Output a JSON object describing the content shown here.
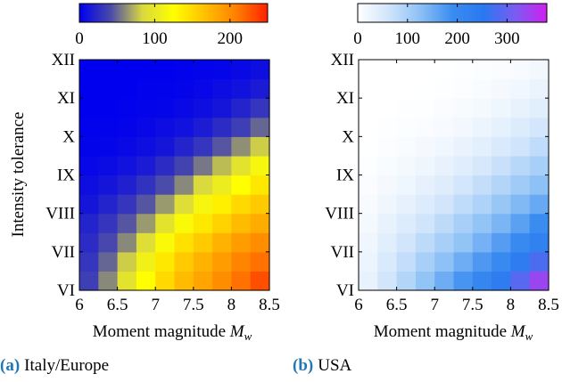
{
  "chart_data": [
    {
      "type": "heatmap",
      "caption_letter": "(a)",
      "caption_text": "Italy/Europe",
      "xlabel": "Moment magnitude M_w",
      "xlabel_main": "Moment magnitude ",
      "xlabel_sym": "M",
      "xlabel_sub": "w",
      "ylabel": "Intensity tolerance",
      "x_ticks": [
        "6",
        "6.5",
        "7",
        "7.5",
        "8",
        "8.5"
      ],
      "xlim": [
        6,
        8.5
      ],
      "y_ticks": [
        "VI",
        "VII",
        "VIII",
        "IX",
        "X",
        "XI",
        "XII"
      ],
      "colorbar": {
        "ticks": [
          "0",
          "100",
          "200"
        ],
        "tick_values": [
          0,
          100,
          200
        ],
        "range": [
          0,
          250
        ],
        "colormap": [
          "#0000ee",
          "#4a4aaa",
          "#d8d840",
          "#ffff00",
          "#ffc000",
          "#ff8000",
          "#ff2000"
        ]
      },
      "grid": {
        "rows_bottom_to_top": 12,
        "cols_left_to_right": 10,
        "values": [
          [
            35,
            60,
            95,
            125,
            150,
            170,
            185,
            200,
            215,
            230
          ],
          [
            30,
            50,
            80,
            110,
            140,
            160,
            175,
            190,
            205,
            215
          ],
          [
            25,
            40,
            60,
            90,
            120,
            145,
            160,
            175,
            190,
            200
          ],
          [
            20,
            30,
            45,
            65,
            95,
            120,
            140,
            155,
            170,
            180
          ],
          [
            12,
            20,
            30,
            45,
            65,
            90,
            115,
            135,
            150,
            160
          ],
          [
            8,
            12,
            18,
            28,
            42,
            60,
            85,
            105,
            125,
            140
          ],
          [
            4,
            6,
            10,
            15,
            25,
            38,
            55,
            75,
            95,
            115
          ],
          [
            2,
            3,
            5,
            8,
            12,
            20,
            30,
            45,
            62,
            80
          ],
          [
            1,
            1,
            2,
            4,
            7,
            10,
            16,
            25,
            35,
            50
          ],
          [
            0,
            0,
            1,
            2,
            3,
            5,
            8,
            12,
            20,
            30
          ],
          [
            0,
            0,
            0,
            1,
            1,
            2,
            4,
            7,
            10,
            15
          ],
          [
            0,
            0,
            0,
            0,
            0,
            1,
            2,
            3,
            5,
            8
          ]
        ]
      }
    },
    {
      "type": "heatmap",
      "caption_letter": "(b)",
      "caption_text": "USA",
      "xlabel": "Moment magnitude M_w",
      "xlabel_main": "Moment magnitude ",
      "xlabel_sym": "M",
      "xlabel_sub": "w",
      "ylabel": "",
      "x_ticks": [
        "6",
        "6.5",
        "7",
        "7.5",
        "8",
        "8.5"
      ],
      "xlim": [
        6,
        8.5
      ],
      "y_ticks": [
        "VI",
        "VII",
        "VIII",
        "IX",
        "X",
        "XI",
        "XII"
      ],
      "colorbar": {
        "ticks": [
          "0",
          "100",
          "200",
          "300"
        ],
        "tick_values": [
          0,
          100,
          200,
          300
        ],
        "range": [
          0,
          380
        ],
        "colormap": [
          "#ffffff",
          "#cfe4fb",
          "#8cc0f5",
          "#3b8cf0",
          "#2a78f0",
          "#7a5cf0",
          "#d020f0"
        ]
      },
      "grid": {
        "rows_bottom_to_top": 12,
        "cols_left_to_right": 10,
        "values": [
          [
            30,
            60,
            90,
            120,
            150,
            180,
            210,
            240,
            290,
            340
          ],
          [
            25,
            50,
            75,
            100,
            125,
            150,
            175,
            200,
            240,
            280
          ],
          [
            20,
            40,
            60,
            80,
            100,
            120,
            145,
            170,
            200,
            225
          ],
          [
            15,
            30,
            45,
            62,
            80,
            100,
            120,
            140,
            165,
            190
          ],
          [
            10,
            20,
            32,
            45,
            60,
            78,
            95,
            115,
            135,
            155
          ],
          [
            6,
            13,
            22,
            32,
            44,
            58,
            74,
            90,
            108,
            125
          ],
          [
            3,
            8,
            14,
            22,
            30,
            42,
            55,
            70,
            85,
            100
          ],
          [
            1,
            4,
            8,
            13,
            19,
            28,
            38,
            50,
            62,
            78
          ],
          [
            0,
            2,
            4,
            7,
            11,
            17,
            25,
            34,
            45,
            58
          ],
          [
            0,
            0,
            2,
            3,
            6,
            10,
            15,
            22,
            30,
            40
          ],
          [
            0,
            0,
            0,
            1,
            3,
            5,
            8,
            13,
            19,
            27
          ],
          [
            0,
            0,
            0,
            0,
            1,
            2,
            4,
            7,
            11,
            16
          ]
        ]
      }
    }
  ]
}
